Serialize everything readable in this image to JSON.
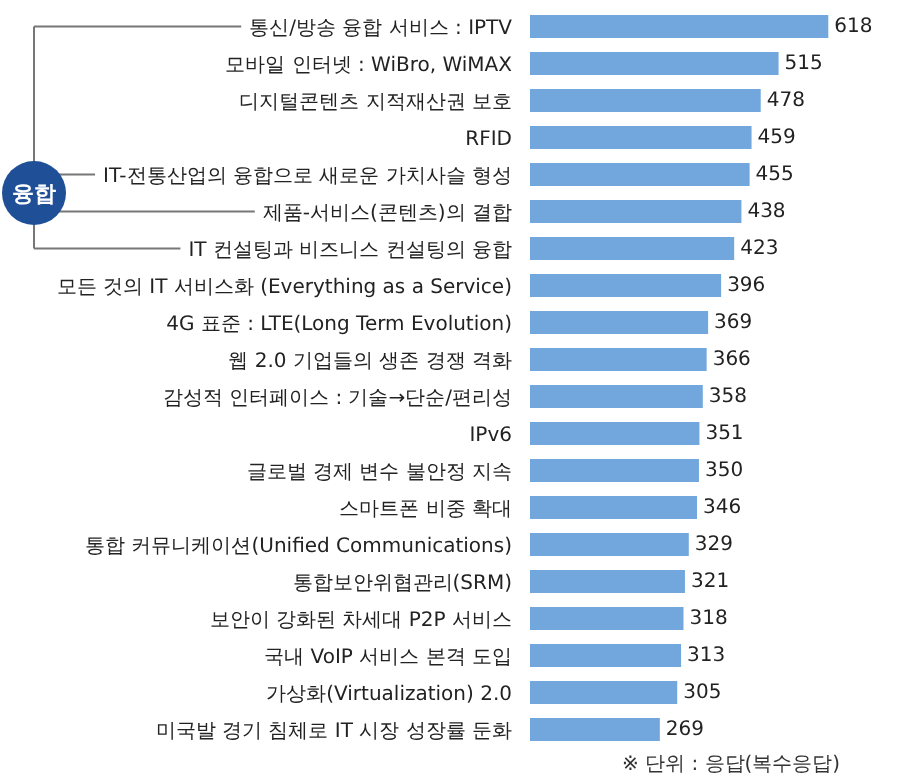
{
  "chart_data": {
    "type": "bar",
    "orientation": "horizontal",
    "tick_labels": "y",
    "data_labels": true,
    "legend": false,
    "color": "#71a7dd",
    "categories": [
      "통신/방송 융합 서비스 : IPTV",
      "모바일 인터넷 : WiBro, WiMAX",
      "디지털콘텐츠 지적재산권 보호",
      "RFID",
      "IT-전통산업의 융합으로 새로운 가치사슬 형성",
      "제품-서비스(콘텐츠)의 결합",
      "IT 컨설팅과 비즈니스 컨설팅의 융합",
      "모든 것의 IT 서비스화 (Everything as a Service)",
      "4G 표준 : LTE(Long Term Evolution)",
      "웹 2.0 기업들의 생존 경쟁 격화",
      "감성적 인터페이스 : 기술→단순/편리성",
      "IPv6",
      "글로벌 경제 변수 불안정 지속",
      "스마트폰 비중 확대",
      "통합 커뮤니케이션(Unified Communications)",
      "통합보안위협관리(SRM)",
      "보안이 강화된 차세대 P2P 서비스",
      "국내 VoIP 서비스 본격 도입",
      "가상화(Virtualization) 2.0",
      "미국발 경기 침체로 IT 시장 성장률 둔화"
    ],
    "values": [
      618,
      515,
      478,
      459,
      455,
      438,
      423,
      396,
      369,
      366,
      358,
      351,
      350,
      346,
      329,
      321,
      318,
      313,
      305,
      269
    ],
    "annotations": [
      "융합",
      "※ 단위 : 응답(복수응답)"
    ]
  }
}
